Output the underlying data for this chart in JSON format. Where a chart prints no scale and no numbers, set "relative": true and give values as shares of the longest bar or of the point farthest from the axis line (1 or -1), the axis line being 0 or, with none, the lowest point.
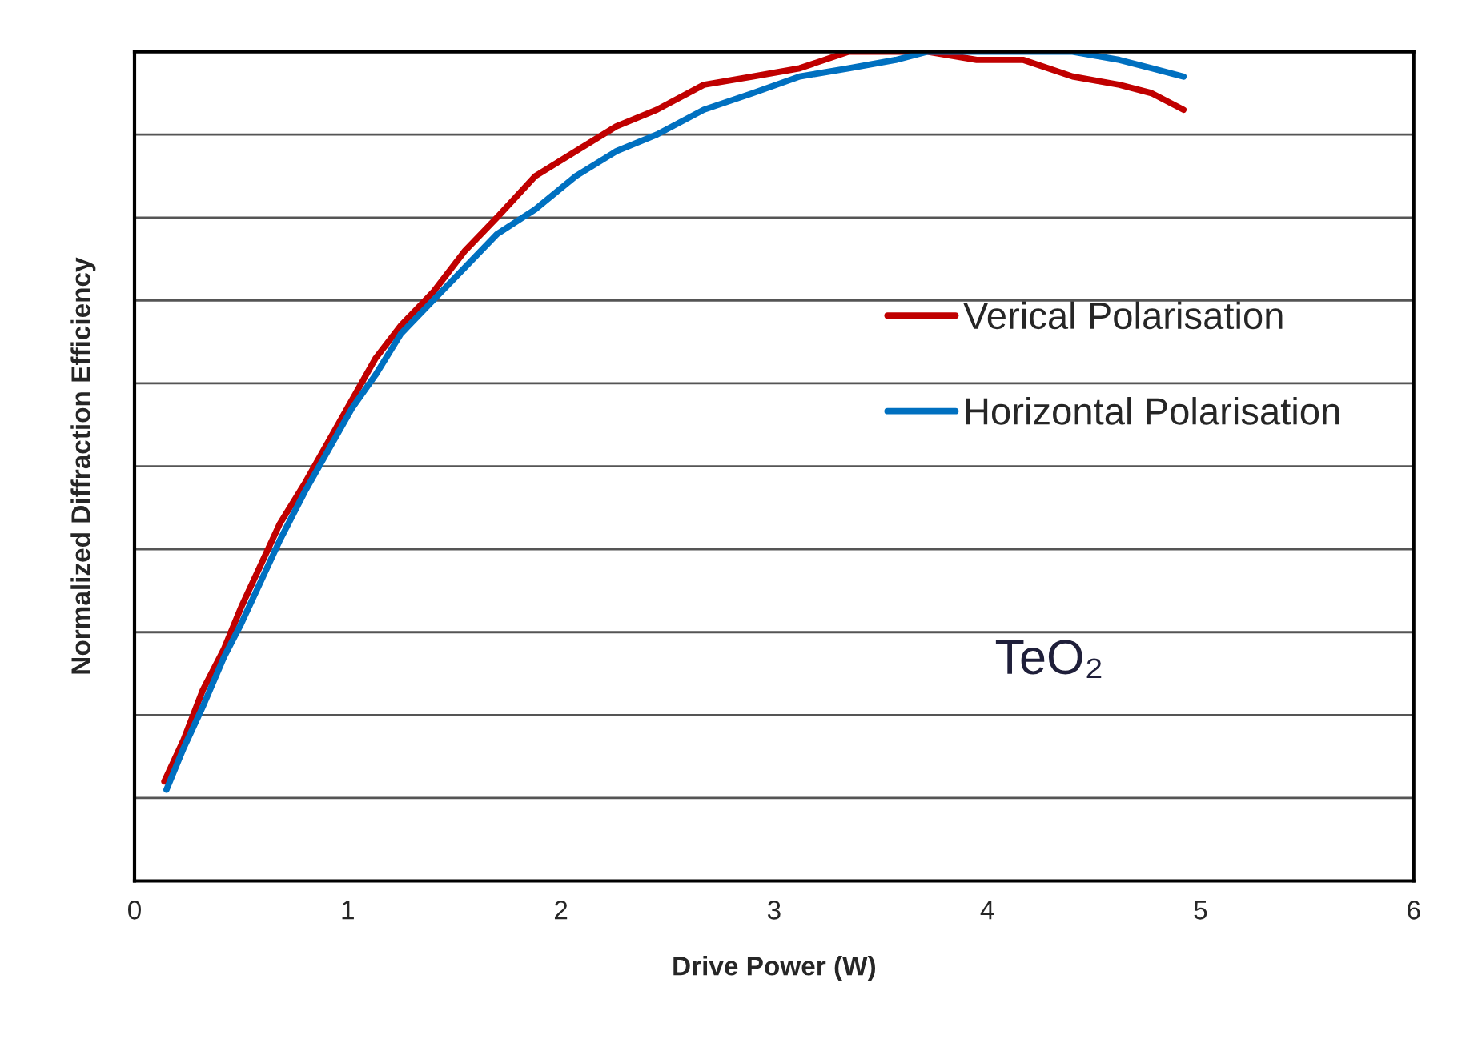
{
  "chart_data": {
    "type": "line",
    "relative": true,
    "xlabel": "Drive Power (W)",
    "ylabel": "Normalized Diffraction Efficiency",
    "xlim": [
      0,
      6
    ],
    "xticks": [
      0,
      1,
      2,
      3,
      4,
      5,
      6
    ],
    "grid": "y",
    "legend": "right",
    "marker": "none",
    "line_style": "solid",
    "annotations": [
      "TeO₂"
    ],
    "series": [
      {
        "name": "Verical Polarisation",
        "color": "#c00000",
        "x": [
          0.14,
          0.23,
          0.32,
          0.42,
          0.5,
          0.59,
          0.68,
          0.8,
          0.91,
          1.02,
          1.13,
          1.25,
          1.4,
          1.55,
          1.7,
          1.88,
          2.07,
          2.26,
          2.45,
          2.67,
          2.9,
          3.12,
          3.35,
          3.57,
          3.72,
          3.95,
          4.17,
          4.4,
          4.62,
          4.77,
          4.92
        ],
        "values": [
          0.12,
          0.17,
          0.23,
          0.28,
          0.33,
          0.38,
          0.43,
          0.48,
          0.53,
          0.58,
          0.63,
          0.67,
          0.71,
          0.76,
          0.8,
          0.85,
          0.88,
          0.91,
          0.93,
          0.96,
          0.97,
          0.98,
          1.0,
          1.0,
          1.0,
          0.99,
          0.99,
          0.97,
          0.96,
          0.95,
          0.93
        ]
      },
      {
        "name": "Horizontal Polarisation",
        "color": "#0070c0",
        "x": [
          0.15,
          0.23,
          0.32,
          0.42,
          0.5,
          0.59,
          0.68,
          0.8,
          0.91,
          1.02,
          1.13,
          1.25,
          1.4,
          1.55,
          1.7,
          1.88,
          2.07,
          2.26,
          2.45,
          2.67,
          2.9,
          3.12,
          3.35,
          3.57,
          3.72,
          3.95,
          4.17,
          4.4,
          4.62,
          4.77,
          4.92
        ],
        "values": [
          0.11,
          0.16,
          0.21,
          0.27,
          0.31,
          0.36,
          0.41,
          0.47,
          0.52,
          0.57,
          0.61,
          0.66,
          0.7,
          0.74,
          0.78,
          0.81,
          0.85,
          0.88,
          0.9,
          0.93,
          0.95,
          0.97,
          0.98,
          0.99,
          1.0,
          1.0,
          1.0,
          1.0,
          0.99,
          0.98,
          0.97
        ]
      }
    ]
  }
}
